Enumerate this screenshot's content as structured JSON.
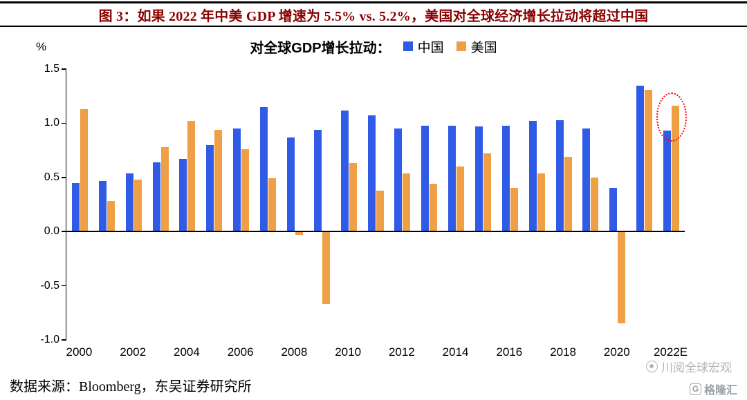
{
  "header": {
    "title": "图 3：如果 2022 年中美 GDP 增速为 5.5% vs. 5.2%，美国对全球经济增长拉动将超过中国"
  },
  "chart": {
    "unit_label": "%",
    "legend_title": "对全球GDP增长拉动："
  },
  "chart_data": {
    "type": "bar",
    "title": "对全球GDP增长拉动",
    "categories": [
      "2000",
      "2001",
      "2002",
      "2003",
      "2004",
      "2005",
      "2006",
      "2007",
      "2008",
      "2009",
      "2010",
      "2011",
      "2012",
      "2013",
      "2014",
      "2015",
      "2016",
      "2017",
      "2018",
      "2019",
      "2020",
      "2021",
      "2022E"
    ],
    "x_tick_labels": [
      "2000",
      "2002",
      "2004",
      "2006",
      "2008",
      "2010",
      "2012",
      "2014",
      "2016",
      "2018",
      "2020",
      "2022E"
    ],
    "x_tick_every": 2,
    "series": [
      {
        "key": "china",
        "name": "中国",
        "color": "#2F5BE7",
        "values": [
          0.45,
          0.47,
          0.54,
          0.64,
          0.67,
          0.8,
          0.95,
          1.15,
          0.87,
          0.94,
          1.12,
          1.07,
          0.95,
          0.98,
          0.98,
          0.97,
          0.98,
          1.02,
          1.03,
          0.95,
          0.4,
          1.35,
          0.93
        ]
      },
      {
        "key": "us",
        "name": "美国",
        "color": "#EF9F45",
        "values": [
          1.13,
          0.28,
          0.48,
          0.78,
          1.02,
          0.94,
          0.76,
          0.49,
          -0.03,
          -0.67,
          0.63,
          0.38,
          0.54,
          0.44,
          0.6,
          0.72,
          0.4,
          0.54,
          0.69,
          0.5,
          -0.85,
          1.31,
          1.16
        ]
      }
    ],
    "ylim": [
      -1.0,
      1.5
    ],
    "yticks": [
      1.5,
      1.0,
      0.5,
      0.0,
      -0.5,
      -1.0
    ],
    "grid": false,
    "legend_position": "top",
    "highlight": {
      "category": "2022E",
      "style": "red-dotted-ellipse",
      "value_range": [
        0.83,
        1.28
      ]
    }
  },
  "footer": {
    "source": "数据来源：Bloomberg，东吴证券研究所"
  },
  "watermark": {
    "account": "川阅全球宏观",
    "logo": "格隆汇",
    "logo_letter": "G"
  }
}
